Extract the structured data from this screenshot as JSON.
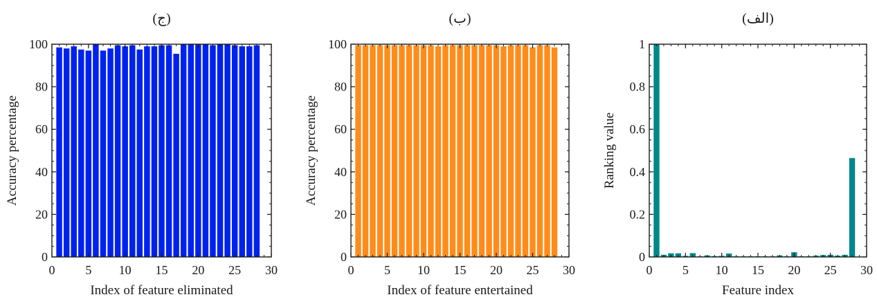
{
  "chart_data": [
    {
      "type": "bar",
      "title": "(ج)",
      "xlabel": "Index of feature eliminated",
      "ylabel": "Accuracy percentage",
      "x": [
        1,
        2,
        3,
        4,
        5,
        6,
        7,
        8,
        9,
        10,
        11,
        12,
        13,
        14,
        15,
        16,
        17,
        18,
        19,
        20,
        21,
        22,
        23,
        24,
        25,
        26,
        27,
        28
      ],
      "values": [
        98.5,
        98,
        99,
        97.5,
        97,
        100,
        97,
        98,
        99.5,
        99,
        99.5,
        97.5,
        99,
        99,
        99.5,
        99.5,
        95.5,
        100,
        100,
        100,
        100,
        99.5,
        100,
        100,
        99.5,
        99,
        99,
        99.5
      ],
      "xlim": [
        0,
        30
      ],
      "ylim": [
        0,
        100
      ],
      "xticks": [
        0,
        5,
        10,
        15,
        20,
        25,
        30
      ],
      "yticks": [
        0,
        20,
        40,
        60,
        80,
        100
      ],
      "color": "#0022ee",
      "grid": false
    },
    {
      "type": "bar",
      "title": "(ب)",
      "xlabel": "Index of feature entertained",
      "ylabel": "Accuracy percentage",
      "x": [
        1,
        2,
        3,
        4,
        5,
        6,
        7,
        8,
        9,
        10,
        11,
        12,
        13,
        14,
        15,
        16,
        17,
        18,
        19,
        20,
        21,
        22,
        23,
        24,
        25,
        26,
        27,
        28
      ],
      "values": [
        99.5,
        99.5,
        99.5,
        99.5,
        99.5,
        99.5,
        99.5,
        99.5,
        99.5,
        99.5,
        99.5,
        99,
        99.5,
        99.5,
        99.5,
        99.5,
        99.5,
        99.5,
        99.5,
        99.5,
        99,
        99.5,
        99.5,
        99.5,
        98.5,
        99.5,
        99.5,
        98.5
      ],
      "xlim": [
        0,
        30
      ],
      "ylim": [
        0,
        100
      ],
      "xticks": [
        0,
        5,
        10,
        15,
        20,
        25,
        30
      ],
      "yticks": [
        0,
        20,
        40,
        60,
        80,
        100
      ],
      "color": "#ff8c1a",
      "grid": false
    },
    {
      "type": "bar",
      "title": "(الف)",
      "xlabel": "Feature index",
      "ylabel": "Ranking value",
      "x": [
        1,
        2,
        3,
        4,
        5,
        6,
        7,
        8,
        9,
        10,
        11,
        12,
        13,
        14,
        15,
        16,
        17,
        18,
        19,
        20,
        21,
        22,
        23,
        24,
        25,
        26,
        27,
        28
      ],
      "values": [
        1.0,
        0.01,
        0.017,
        0.017,
        0.005,
        0.018,
        0.003,
        0.007,
        0.004,
        0.005,
        0.016,
        0.003,
        0.003,
        0.003,
        0.003,
        0.003,
        0.003,
        0.007,
        0.003,
        0.022,
        0.003,
        0.003,
        0.006,
        0.009,
        0.01,
        0.006,
        0.01,
        0.465
      ],
      "xlim": [
        0,
        30
      ],
      "ylim": [
        0,
        1
      ],
      "xticks": [
        0,
        5,
        10,
        15,
        20,
        25,
        30
      ],
      "yticks": [
        0,
        0.2,
        0.4,
        0.6,
        0.8,
        1
      ],
      "ytick_labels": [
        "0",
        "0.2",
        "0.4",
        "0.6",
        "0.8",
        "1"
      ],
      "color": "#00878a",
      "grid": false
    }
  ]
}
